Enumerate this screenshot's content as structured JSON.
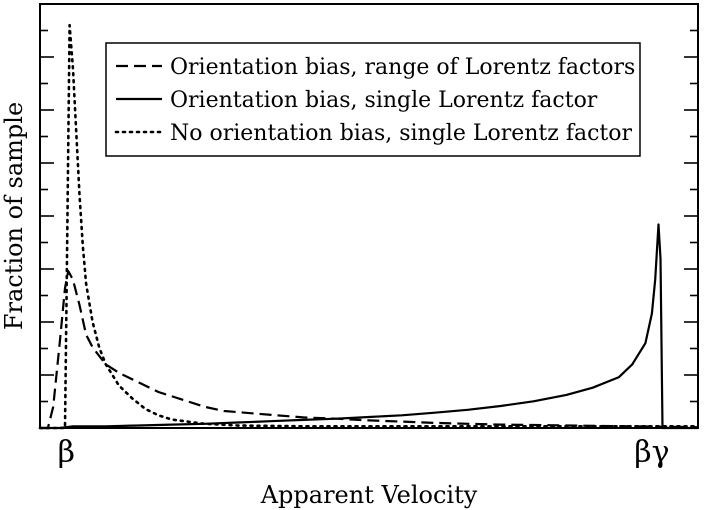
{
  "chart_data": {
    "type": "line",
    "title": "",
    "xlabel": "Apparent Velocity",
    "ylabel": "Fraction of sample",
    "x_ticks": [
      {
        "label": "β",
        "x": 0.04
      },
      {
        "label": "βγ",
        "x": 0.93
      }
    ],
    "xlim": [
      0,
      1
    ],
    "ylim": [
      0,
      1
    ],
    "grid": false,
    "legend_position": "top-left",
    "series": [
      {
        "name": "Orientation bias, range of Lorentz factors",
        "style": "dashed",
        "points": [
          [
            0.0,
            0.0
          ],
          [
            0.012,
            0.0
          ],
          [
            0.02,
            0.05
          ],
          [
            0.03,
            0.2
          ],
          [
            0.038,
            0.33
          ],
          [
            0.043,
            0.37
          ],
          [
            0.05,
            0.35
          ],
          [
            0.06,
            0.29
          ],
          [
            0.07,
            0.22
          ],
          [
            0.08,
            0.19
          ],
          [
            0.09,
            0.17
          ],
          [
            0.1,
            0.15
          ],
          [
            0.12,
            0.13
          ],
          [
            0.14,
            0.115
          ],
          [
            0.16,
            0.1
          ],
          [
            0.18,
            0.085
          ],
          [
            0.2,
            0.075
          ],
          [
            0.22,
            0.065
          ],
          [
            0.25,
            0.05
          ],
          [
            0.28,
            0.04
          ],
          [
            0.32,
            0.035
          ],
          [
            0.36,
            0.03
          ],
          [
            0.4,
            0.025
          ],
          [
            0.45,
            0.022
          ],
          [
            0.5,
            0.018
          ],
          [
            0.55,
            0.015
          ],
          [
            0.6,
            0.012
          ],
          [
            0.65,
            0.01
          ],
          [
            0.7,
            0.008
          ],
          [
            0.75,
            0.007
          ],
          [
            0.8,
            0.006
          ],
          [
            0.85,
            0.005
          ],
          [
            0.9,
            0.004
          ],
          [
            0.95,
            0.003
          ],
          [
            1.0,
            0.002
          ]
        ]
      },
      {
        "name": "Orientation bias, single Lorentz factor",
        "style": "solid",
        "points": [
          [
            0.0,
            0.0
          ],
          [
            0.03,
            0.0
          ],
          [
            0.05,
            0.004
          ],
          [
            0.1,
            0.004
          ],
          [
            0.15,
            0.006
          ],
          [
            0.2,
            0.008
          ],
          [
            0.25,
            0.01
          ],
          [
            0.3,
            0.013
          ],
          [
            0.35,
            0.016
          ],
          [
            0.4,
            0.019
          ],
          [
            0.45,
            0.022
          ],
          [
            0.5,
            0.026
          ],
          [
            0.55,
            0.03
          ],
          [
            0.6,
            0.036
          ],
          [
            0.65,
            0.043
          ],
          [
            0.7,
            0.052
          ],
          [
            0.75,
            0.063
          ],
          [
            0.8,
            0.078
          ],
          [
            0.84,
            0.095
          ],
          [
            0.88,
            0.12
          ],
          [
            0.9,
            0.15
          ],
          [
            0.92,
            0.2
          ],
          [
            0.93,
            0.27
          ],
          [
            0.935,
            0.35
          ],
          [
            0.94,
            0.48
          ],
          [
            0.943,
            0.4
          ],
          [
            0.946,
            0.0
          ],
          [
            1.0,
            0.0
          ]
        ]
      },
      {
        "name": "No orientation bias, single Lorentz factor",
        "style": "dotted",
        "points": [
          [
            0.0,
            0.0
          ],
          [
            0.038,
            0.0
          ],
          [
            0.041,
            0.4
          ],
          [
            0.045,
            0.95
          ],
          [
            0.05,
            0.85
          ],
          [
            0.055,
            0.7
          ],
          [
            0.06,
            0.55
          ],
          [
            0.065,
            0.43
          ],
          [
            0.07,
            0.34
          ],
          [
            0.08,
            0.25
          ],
          [
            0.09,
            0.19
          ],
          [
            0.1,
            0.15
          ],
          [
            0.12,
            0.1
          ],
          [
            0.14,
            0.07
          ],
          [
            0.16,
            0.045
          ],
          [
            0.18,
            0.03
          ],
          [
            0.2,
            0.02
          ],
          [
            0.25,
            0.01
          ],
          [
            0.3,
            0.006
          ],
          [
            0.4,
            0.004
          ],
          [
            0.6,
            0.004
          ],
          [
            0.8,
            0.004
          ],
          [
            0.95,
            0.004
          ],
          [
            1.0,
            0.004
          ]
        ]
      }
    ]
  }
}
